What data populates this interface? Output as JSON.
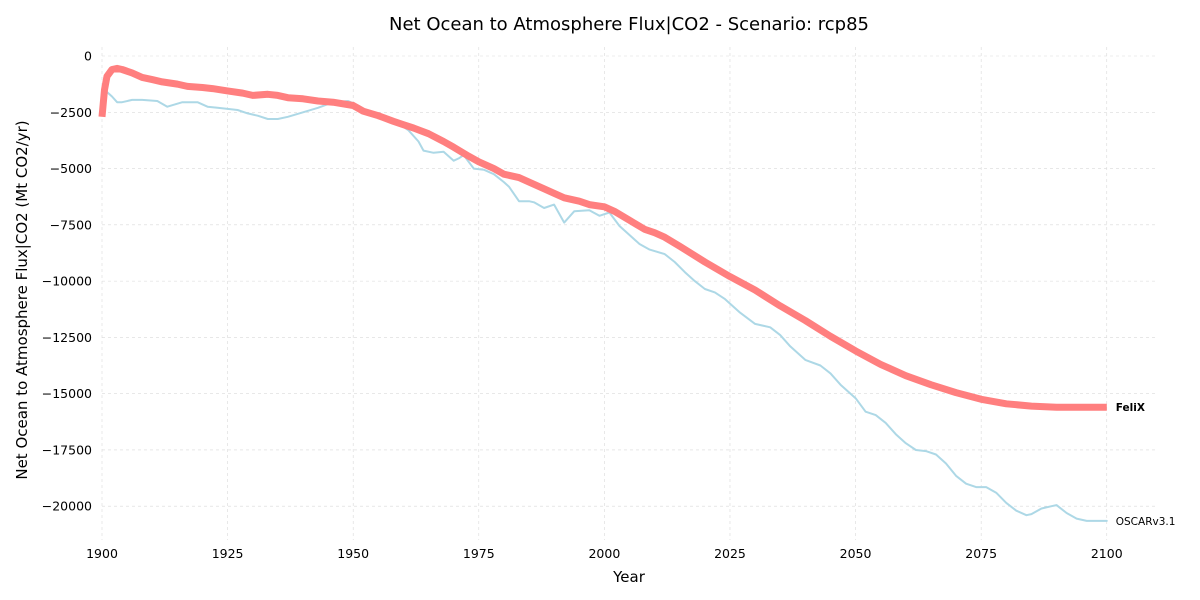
{
  "chart_data": {
    "type": "line",
    "title": "Net Ocean to Atmosphere Flux|CO2 - Scenario: rcp85",
    "xlabel": "Year",
    "ylabel": "Net Ocean to Atmosphere Flux|CO2 (Mt CO2/yr)",
    "xlim": [
      1900,
      2110
    ],
    "ylim": [
      -21500,
      400
    ],
    "x_ticks": [
      "1900",
      "1925",
      "1950",
      "1975",
      "2000",
      "2025",
      "2050",
      "2075",
      "2100"
    ],
    "y_ticks": [
      "0",
      "−2500",
      "−5000",
      "−7500",
      "−10000",
      "−12500",
      "−15000",
      "−17500",
      "−20000"
    ],
    "grid": true,
    "series": [
      {
        "name": "FeliX",
        "color": "#ff7f7f",
        "label_weight": "bold",
        "points": [
          [
            1900,
            -2700
          ],
          [
            1900.5,
            -1500
          ],
          [
            1901,
            -900
          ],
          [
            1902,
            -600
          ],
          [
            1903,
            -550
          ],
          [
            1904,
            -600
          ],
          [
            1906,
            -750
          ],
          [
            1908,
            -950
          ],
          [
            1910,
            -1050
          ],
          [
            1912,
            -1150
          ],
          [
            1915,
            -1250
          ],
          [
            1917,
            -1350
          ],
          [
            1920,
            -1400
          ],
          [
            1922,
            -1450
          ],
          [
            1925,
            -1550
          ],
          [
            1928,
            -1650
          ],
          [
            1930,
            -1750
          ],
          [
            1933,
            -1700
          ],
          [
            1935,
            -1750
          ],
          [
            1937,
            -1850
          ],
          [
            1940,
            -1900
          ],
          [
            1943,
            -2000
          ],
          [
            1946,
            -2050
          ],
          [
            1950,
            -2200
          ],
          [
            1952,
            -2450
          ],
          [
            1955,
            -2650
          ],
          [
            1958,
            -2900
          ],
          [
            1960,
            -3050
          ],
          [
            1962,
            -3200
          ],
          [
            1965,
            -3450
          ],
          [
            1968,
            -3800
          ],
          [
            1970,
            -4050
          ],
          [
            1973,
            -4450
          ],
          [
            1975,
            -4700
          ],
          [
            1978,
            -5000
          ],
          [
            1980,
            -5250
          ],
          [
            1983,
            -5400
          ],
          [
            1985,
            -5600
          ],
          [
            1988,
            -5900
          ],
          [
            1990,
            -6100
          ],
          [
            1992,
            -6300
          ],
          [
            1995,
            -6450
          ],
          [
            1997,
            -6600
          ],
          [
            2000,
            -6700
          ],
          [
            2002,
            -6900
          ],
          [
            2005,
            -7300
          ],
          [
            2008,
            -7700
          ],
          [
            2010,
            -7850
          ],
          [
            2012,
            -8050
          ],
          [
            2015,
            -8450
          ],
          [
            2020,
            -9150
          ],
          [
            2025,
            -9800
          ],
          [
            2030,
            -10400
          ],
          [
            2035,
            -11100
          ],
          [
            2040,
            -11750
          ],
          [
            2045,
            -12450
          ],
          [
            2050,
            -13100
          ],
          [
            2055,
            -13700
          ],
          [
            2060,
            -14200
          ],
          [
            2065,
            -14600
          ],
          [
            2070,
            -14950
          ],
          [
            2075,
            -15250
          ],
          [
            2080,
            -15450
          ],
          [
            2085,
            -15550
          ],
          [
            2090,
            -15600
          ],
          [
            2095,
            -15600
          ],
          [
            2100,
            -15600
          ]
        ]
      },
      {
        "name": "OSCARv3.1",
        "color": "#add8e6",
        "label_weight": "normal",
        "points": [
          [
            1900,
            -1500
          ],
          [
            1901,
            -1600
          ],
          [
            1902,
            -1800
          ],
          [
            1903,
            -2050
          ],
          [
            1904,
            -2050
          ],
          [
            1906,
            -1950
          ],
          [
            1908,
            -1950
          ],
          [
            1911,
            -2000
          ],
          [
            1913,
            -2250
          ],
          [
            1916,
            -2050
          ],
          [
            1919,
            -2050
          ],
          [
            1921,
            -2250
          ],
          [
            1923,
            -2300
          ],
          [
            1925,
            -2350
          ],
          [
            1927,
            -2400
          ],
          [
            1929,
            -2550
          ],
          [
            1931,
            -2650
          ],
          [
            1933,
            -2800
          ],
          [
            1935,
            -2800
          ],
          [
            1937,
            -2700
          ],
          [
            1940,
            -2500
          ],
          [
            1943,
            -2300
          ],
          [
            1946,
            -2050
          ],
          [
            1949,
            -2000
          ],
          [
            1951,
            -2200
          ],
          [
            1954,
            -2600
          ],
          [
            1957,
            -2900
          ],
          [
            1959,
            -3000
          ],
          [
            1961,
            -3300
          ],
          [
            1963,
            -3800
          ],
          [
            1964,
            -4200
          ],
          [
            1966,
            -4300
          ],
          [
            1968,
            -4250
          ],
          [
            1970,
            -4650
          ],
          [
            1971,
            -4550
          ],
          [
            1972,
            -4400
          ],
          [
            1974,
            -5000
          ],
          [
            1976,
            -5050
          ],
          [
            1978,
            -5250
          ],
          [
            1980,
            -5600
          ],
          [
            1981,
            -5800
          ],
          [
            1983,
            -6450
          ],
          [
            1985,
            -6450
          ],
          [
            1986,
            -6500
          ],
          [
            1988,
            -6750
          ],
          [
            1990,
            -6600
          ],
          [
            1992,
            -7400
          ],
          [
            1994,
            -6900
          ],
          [
            1997,
            -6850
          ],
          [
            1999,
            -7100
          ],
          [
            2001,
            -6950
          ],
          [
            2003,
            -7550
          ],
          [
            2005,
            -7950
          ],
          [
            2007,
            -8350
          ],
          [
            2009,
            -8600
          ],
          [
            2012,
            -8800
          ],
          [
            2014,
            -9150
          ],
          [
            2016,
            -9600
          ],
          [
            2018,
            -10000
          ],
          [
            2020,
            -10350
          ],
          [
            2022,
            -10500
          ],
          [
            2024,
            -10800
          ],
          [
            2027,
            -11400
          ],
          [
            2030,
            -11900
          ],
          [
            2033,
            -12050
          ],
          [
            2035,
            -12400
          ],
          [
            2037,
            -12900
          ],
          [
            2040,
            -13500
          ],
          [
            2043,
            -13750
          ],
          [
            2045,
            -14100
          ],
          [
            2047,
            -14600
          ],
          [
            2050,
            -15200
          ],
          [
            2052,
            -15800
          ],
          [
            2054,
            -15950
          ],
          [
            2056,
            -16300
          ],
          [
            2058,
            -16800
          ],
          [
            2060,
            -17200
          ],
          [
            2062,
            -17500
          ],
          [
            2064,
            -17550
          ],
          [
            2066,
            -17700
          ],
          [
            2068,
            -18100
          ],
          [
            2070,
            -18650
          ],
          [
            2072,
            -19000
          ],
          [
            2074,
            -19150
          ],
          [
            2076,
            -19150
          ],
          [
            2078,
            -19400
          ],
          [
            2080,
            -19850
          ],
          [
            2082,
            -20200
          ],
          [
            2084,
            -20400
          ],
          [
            2085,
            -20350
          ],
          [
            2087,
            -20100
          ],
          [
            2089,
            -20000
          ],
          [
            2090,
            -19950
          ],
          [
            2092,
            -20300
          ],
          [
            2094,
            -20550
          ],
          [
            2096,
            -20650
          ],
          [
            2098,
            -20650
          ],
          [
            2100,
            -20650
          ]
        ]
      }
    ]
  }
}
